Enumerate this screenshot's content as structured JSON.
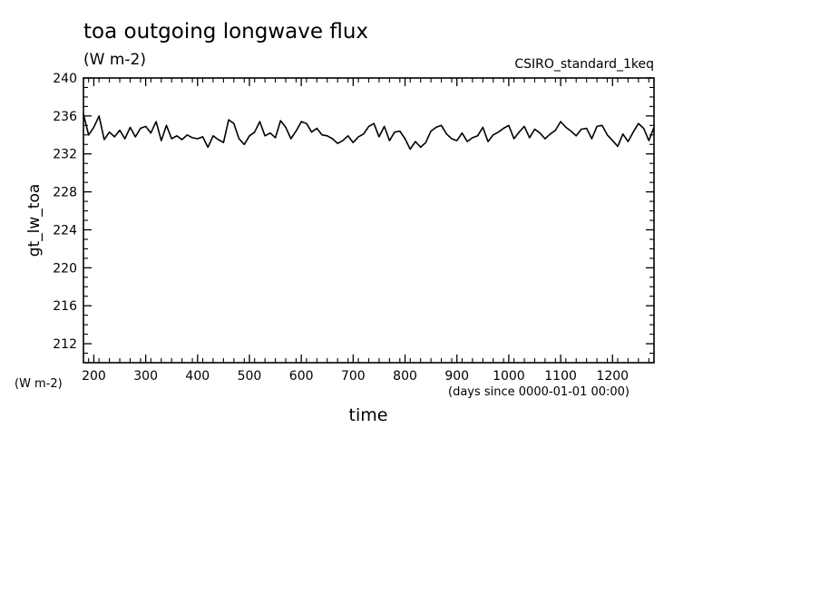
{
  "chart_data": {
    "type": "line",
    "title": "toa outgoing longwave flux",
    "subtitle": "(W m-2)",
    "annotation": "CSIRO_standard_1keq",
    "ylabel": "gt_lw_toa",
    "yunits": "(W m-2)",
    "xlabel": "time",
    "xunits": "(days since 0000-01-01 00:00)",
    "xlim": [
      180,
      1280
    ],
    "ylim": [
      210,
      240
    ],
    "x_ticks": [
      200,
      300,
      400,
      500,
      600,
      700,
      800,
      900,
      1000,
      1100,
      1200
    ],
    "x_tick_labels": [
      "200",
      "300",
      "400",
      "500",
      "600",
      "700",
      "800",
      "900",
      "1000",
      "1100",
      "1200"
    ],
    "y_ticks": [
      212,
      216,
      220,
      224,
      228,
      232,
      236,
      240
    ],
    "y_tick_labels": [
      "212",
      "216",
      "220",
      "224",
      "228",
      "232",
      "236",
      "240"
    ],
    "grid": false,
    "series": [
      {
        "x": [
          180,
          190,
          200,
          210,
          220,
          230,
          240,
          250,
          260,
          270,
          280,
          290,
          300,
          310,
          320,
          330,
          340,
          350,
          360,
          370,
          380,
          390,
          400,
          410,
          420,
          430,
          440,
          450,
          460,
          470,
          480,
          490,
          500,
          510,
          520,
          530,
          540,
          550,
          560,
          570,
          580,
          590,
          600,
          610,
          620,
          630,
          640,
          650,
          660,
          670,
          680,
          690,
          700,
          710,
          720,
          730,
          740,
          750,
          760,
          770,
          780,
          790,
          800,
          810,
          820,
          830,
          840,
          850,
          860,
          870,
          880,
          890,
          900,
          910,
          920,
          930,
          940,
          950,
          960,
          970,
          980,
          990,
          1000,
          1010,
          1020,
          1030,
          1040,
          1050,
          1060,
          1070,
          1080,
          1090,
          1100,
          1110,
          1120,
          1130,
          1140,
          1150,
          1160,
          1170,
          1180,
          1190,
          1200,
          1210,
          1220,
          1230,
          1240,
          1250,
          1260,
          1270,
          1280
        ],
        "values": [
          236.2,
          234.0,
          234.8,
          236.0,
          233.5,
          234.3,
          233.8,
          234.5,
          233.6,
          234.8,
          233.8,
          234.7,
          234.9,
          234.2,
          235.4,
          233.4,
          235.0,
          233.6,
          233.9,
          233.5,
          234.0,
          233.7,
          233.6,
          233.8,
          232.7,
          233.9,
          233.5,
          233.2,
          235.6,
          235.2,
          233.6,
          233.0,
          233.9,
          234.3,
          235.4,
          233.9,
          234.2,
          233.7,
          235.5,
          234.8,
          233.6,
          234.4,
          235.4,
          235.2,
          234.3,
          234.7,
          234.0,
          233.9,
          233.6,
          233.1,
          233.4,
          233.9,
          233.2,
          233.8,
          234.1,
          234.9,
          235.2,
          233.8,
          234.9,
          233.4,
          234.3,
          234.4,
          233.6,
          232.5,
          233.3,
          232.7,
          233.2,
          234.4,
          234.8,
          235.0,
          234.1,
          233.6,
          233.4,
          234.2,
          233.3,
          233.7,
          233.9,
          234.8,
          233.3,
          234.0,
          234.3,
          234.7,
          235.0,
          233.6,
          234.3,
          234.9,
          233.7,
          234.6,
          234.2,
          233.6,
          234.1,
          234.5,
          235.4,
          234.8,
          234.4,
          233.9,
          234.6,
          234.7,
          233.6,
          234.9,
          235.0,
          234.0,
          233.4,
          232.8,
          234.1,
          233.3,
          234.3,
          235.2,
          234.7,
          233.4,
          234.8
        ]
      }
    ]
  }
}
